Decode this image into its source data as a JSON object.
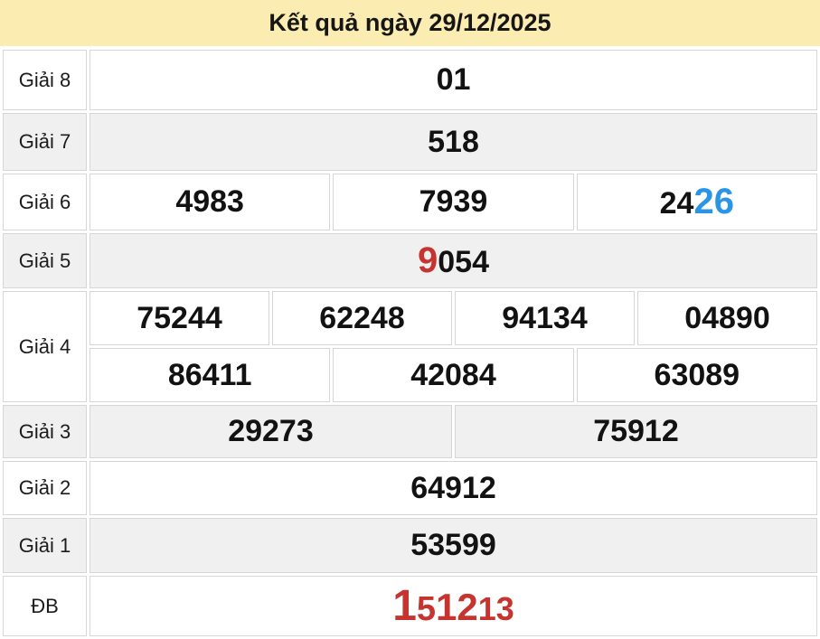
{
  "header": {
    "title": "Kết quả ngày 29/12/2025"
  },
  "colors": {
    "header_bg": "#FBECB2",
    "row_alt_bg": "#F0F0F0",
    "border": "#D6D6D6",
    "accent_red": "#C7342F",
    "accent_blue": "#2A94E5",
    "text": "#121212"
  },
  "table": {
    "rows": {
      "g8": {
        "label": "Giải 8",
        "value": "01"
      },
      "g7": {
        "label": "Giải 7",
        "value": "518"
      },
      "g6": {
        "label": "Giải 6",
        "cell1": "4983",
        "cell2": "7939",
        "cell3_black": "24",
        "cell3_blue": "26"
      },
      "g5": {
        "label": "Giải 5",
        "head_red": "9",
        "tail_black": "054"
      },
      "g4": {
        "label": "Giải 4",
        "row1": [
          "75244",
          "62248",
          "94134",
          "04890"
        ],
        "row2": [
          "86411",
          "42084",
          "63089"
        ]
      },
      "g3": {
        "label": "Giải 3",
        "cell1": "29273",
        "cell2": "75912"
      },
      "g2": {
        "label": "Giải 2",
        "value": "64912"
      },
      "g1": {
        "label": "Giải 1",
        "value": "53599"
      },
      "db": {
        "label": "ĐB",
        "seg1": "1",
        "seg2": "5",
        "seg3": "12",
        "seg4": "13"
      }
    }
  }
}
